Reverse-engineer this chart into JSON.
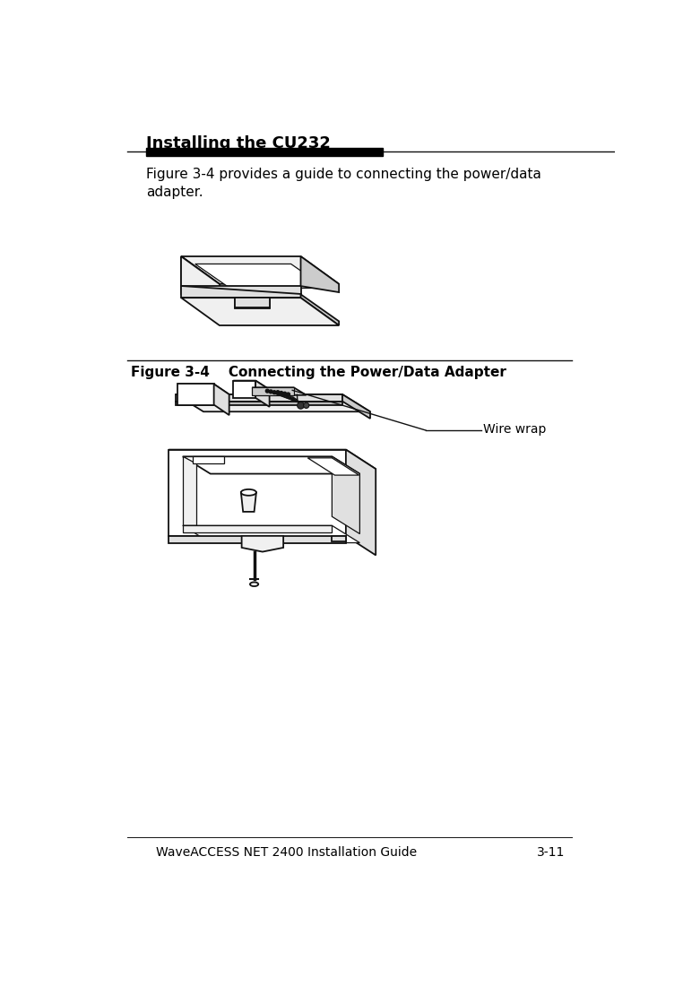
{
  "title": "Installing the CU232",
  "body_text": "Figure 3-4 provides a guide to connecting the power/data\nadapter.",
  "figure_caption": "Figure 3-4    Connecting the Power/Data Adapter",
  "footer_left": "WaveACCESS NET 2400 Installation Guide",
  "footer_right": "3-11",
  "wire_wrap_label": "Wire wrap",
  "bg_color": "#ffffff",
  "text_color": "#000000",
  "header_bar_color": "#000000",
  "line_color": "#000000",
  "draw_color": "#111111",
  "fill_white": "#ffffff",
  "fill_light": "#f0f0f0",
  "fill_mid": "#e0e0e0",
  "fill_dark": "#cccccc"
}
